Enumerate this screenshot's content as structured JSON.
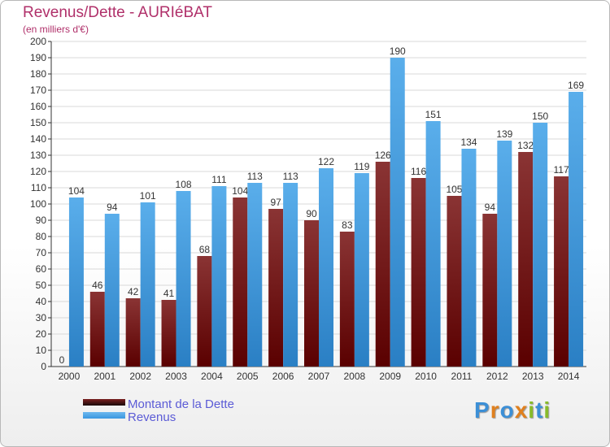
{
  "header": {
    "title": "Revenus/Dette - AURIéBAT",
    "subtitle": "(en milliers d'€)"
  },
  "chart_data": {
    "type": "bar",
    "categories": [
      "2000",
      "2001",
      "2002",
      "2003",
      "2004",
      "2005",
      "2006",
      "2007",
      "2008",
      "2009",
      "2010",
      "2011",
      "2012",
      "2013",
      "2014"
    ],
    "series": [
      {
        "name": "Montant de la Dette",
        "color": "#7a1f1f",
        "values": [
          0,
          46,
          42,
          41,
          68,
          104,
          97,
          90,
          83,
          126,
          116,
          105,
          94,
          132,
          117
        ]
      },
      {
        "name": "Revenus",
        "color": "#3a97e0",
        "values": [
          104,
          94,
          101,
          108,
          111,
          113,
          113,
          122,
          119,
          190,
          151,
          134,
          139,
          150,
          169
        ]
      }
    ],
    "ylim": [
      0,
      200
    ],
    "yticks": [
      0,
      10,
      20,
      30,
      40,
      50,
      60,
      70,
      80,
      90,
      100,
      110,
      120,
      130,
      140,
      150,
      160,
      170,
      180,
      190,
      200
    ],
    "grid": true,
    "legend": "bottom-left"
  },
  "legend": {
    "items": [
      {
        "label": "Montant de la Dette",
        "color": "#7a1f1f"
      },
      {
        "label": "Revenus",
        "color": "#3a97e0"
      }
    ]
  },
  "logo": {
    "letters": [
      "P",
      "r",
      "o",
      "x",
      "i",
      "t",
      "i"
    ],
    "colors": [
      "#3c8fd6",
      "#e0801e",
      "#3c8fd6",
      "#e0801e",
      "#88bb2a",
      "#3c8fd6",
      "#88bb2a"
    ]
  }
}
